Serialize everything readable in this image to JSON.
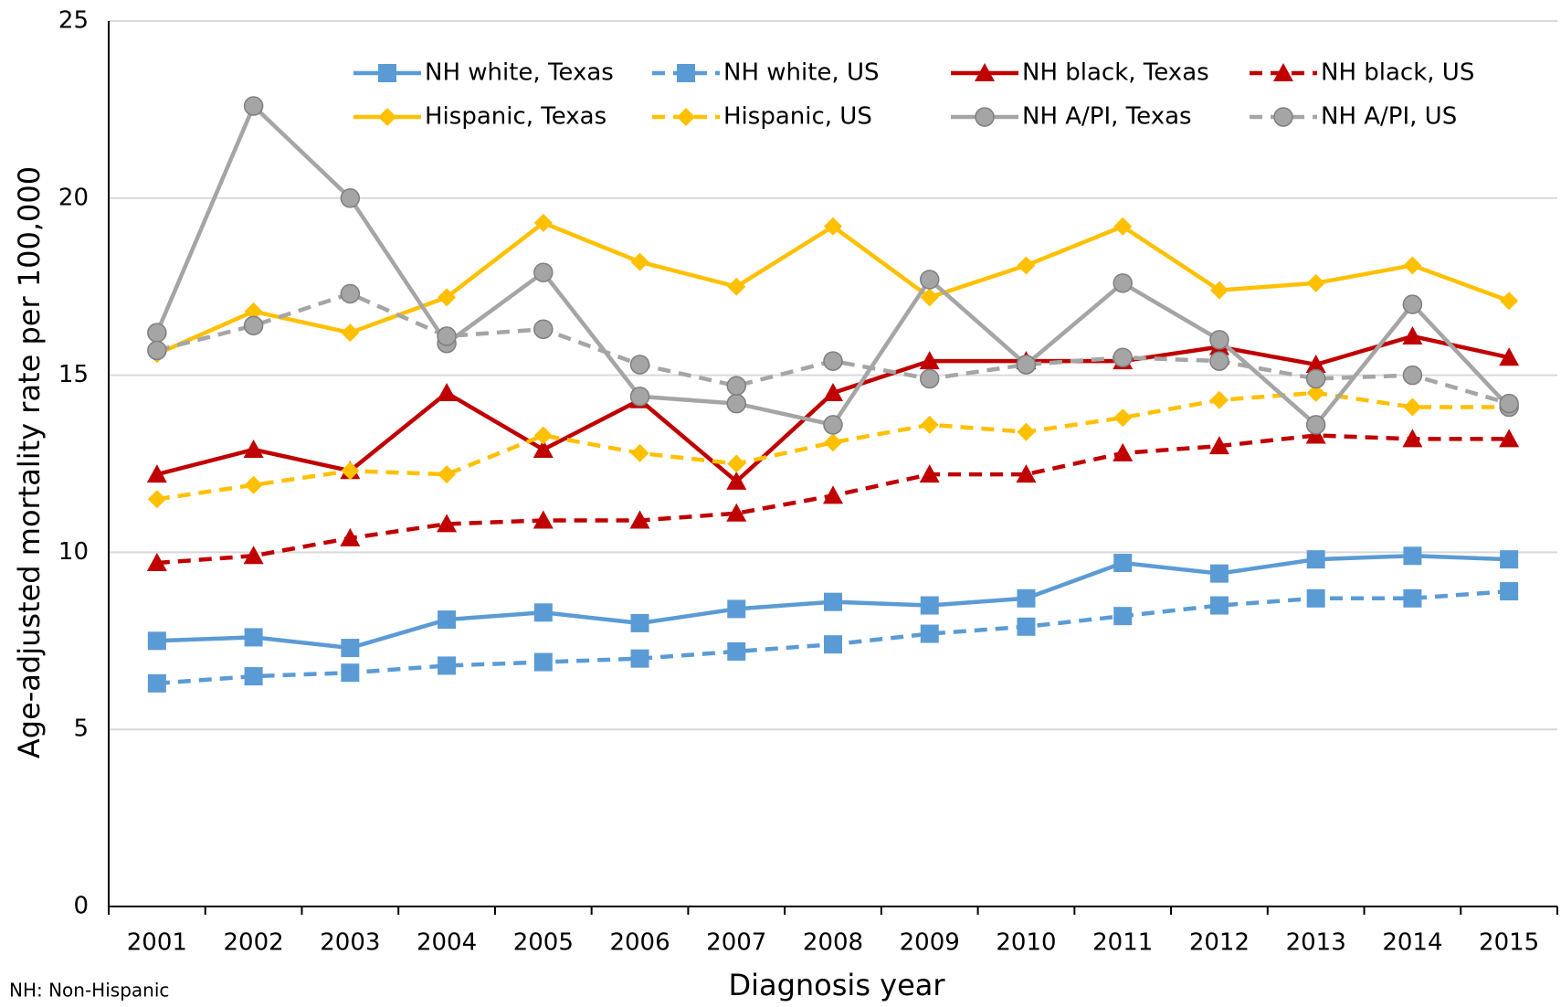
{
  "chart_data": {
    "type": "line",
    "x_label": "Diagnosis year",
    "y_label": "Age-adjusted mortality rate per 100,000",
    "note": "NH: Non-Hispanic",
    "categories": [
      "2001",
      "2002",
      "2003",
      "2004",
      "2005",
      "2006",
      "2007",
      "2008",
      "2009",
      "2010",
      "2011",
      "2012",
      "2013",
      "2014",
      "2015"
    ],
    "ylim": [
      0,
      25
    ],
    "yticks": [
      0,
      5,
      10,
      15,
      20,
      25
    ],
    "grid": true,
    "series": [
      {
        "name": "NH white, Texas",
        "color": "#5b9bd5",
        "dash": false,
        "marker": "square",
        "values": [
          7.5,
          7.6,
          7.3,
          8.1,
          8.3,
          8.0,
          8.4,
          8.6,
          8.5,
          8.7,
          9.7,
          9.4,
          9.8,
          9.9,
          9.8
        ]
      },
      {
        "name": "NH white, US",
        "color": "#5b9bd5",
        "dash": true,
        "marker": "square",
        "values": [
          6.3,
          6.5,
          6.6,
          6.8,
          6.9,
          7.0,
          7.2,
          7.4,
          7.7,
          7.9,
          8.2,
          8.5,
          8.7,
          8.7,
          8.9
        ]
      },
      {
        "name": "NH black, Texas",
        "color": "#c00000",
        "dash": false,
        "marker": "triangle",
        "values": [
          12.2,
          12.9,
          12.3,
          14.5,
          12.9,
          14.3,
          12.0,
          14.5,
          15.4,
          15.4,
          15.4,
          15.8,
          15.3,
          16.1,
          15.5
        ]
      },
      {
        "name": "NH black, US",
        "color": "#c00000",
        "dash": true,
        "marker": "triangle",
        "values": [
          9.7,
          9.9,
          10.4,
          10.8,
          10.9,
          10.9,
          11.1,
          11.6,
          12.2,
          12.2,
          12.8,
          13.0,
          13.3,
          13.2,
          13.2
        ]
      },
      {
        "name": "Hispanic, Texas",
        "color": "#ffc000",
        "dash": false,
        "marker": "diamond",
        "values": [
          15.6,
          16.8,
          16.2,
          17.2,
          19.3,
          18.2,
          17.5,
          19.2,
          17.2,
          18.1,
          19.2,
          17.4,
          17.6,
          18.1,
          17.1
        ]
      },
      {
        "name": "Hispanic, US",
        "color": "#ffc000",
        "dash": true,
        "marker": "diamond",
        "values": [
          11.5,
          11.9,
          12.3,
          12.2,
          13.3,
          12.8,
          12.5,
          13.1,
          13.6,
          13.4,
          13.8,
          14.3,
          14.5,
          14.1,
          14.1
        ]
      },
      {
        "name": "NH A/PI, Texas",
        "color": "#a5a5a5",
        "dash": false,
        "marker": "circle",
        "values": [
          16.2,
          22.6,
          20.0,
          15.9,
          17.9,
          14.4,
          14.2,
          13.6,
          17.7,
          15.3,
          17.6,
          16.0,
          13.6,
          17.0,
          14.1
        ]
      },
      {
        "name": "NH A/PI, US",
        "color": "#a5a5a5",
        "dash": true,
        "marker": "circle",
        "values": [
          15.7,
          16.4,
          17.3,
          16.1,
          16.3,
          15.3,
          14.7,
          15.4,
          14.9,
          15.3,
          15.5,
          15.4,
          14.9,
          15.0,
          14.2
        ]
      }
    ]
  }
}
